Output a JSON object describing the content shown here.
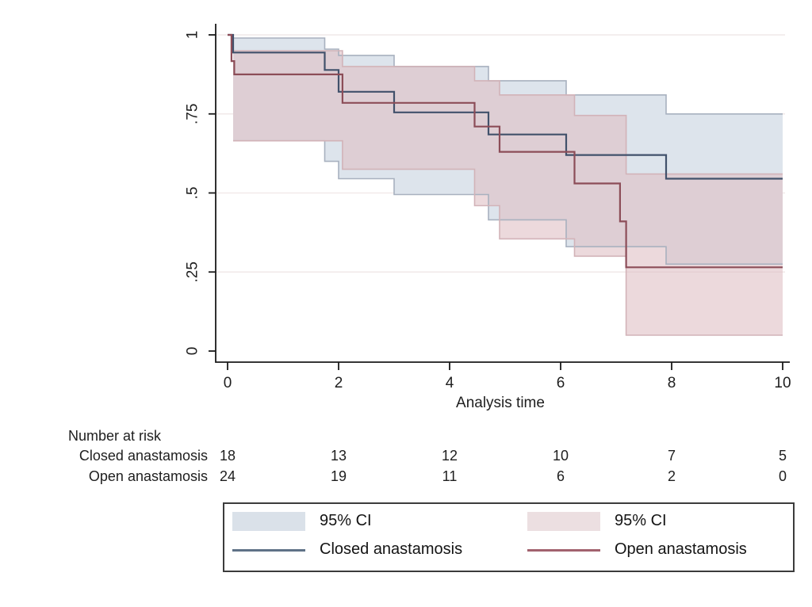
{
  "chart_data": {
    "type": "line",
    "subtype": "kaplan-meier-step-with-ci-bands",
    "title": "",
    "xlabel": "Analysis time",
    "ylabel": "",
    "xlim": [
      0,
      10
    ],
    "ylim": [
      0,
      1
    ],
    "grid": "horizontal",
    "xticks": [
      {
        "t": 0,
        "label": "0"
      },
      {
        "t": 2,
        "label": "2"
      },
      {
        "t": 4,
        "label": "4"
      },
      {
        "t": 6,
        "label": "6"
      },
      {
        "t": 8,
        "label": "8"
      },
      {
        "t": 10,
        "label": "10"
      }
    ],
    "yticks": [
      {
        "v": 0,
        "label": "0"
      },
      {
        "v": 0.25,
        "label": ".25"
      },
      {
        "v": 0.5,
        "label": ".5"
      },
      {
        "v": 0.75,
        "label": ".75"
      },
      {
        "v": 1,
        "label": "1"
      }
    ],
    "series": [
      {
        "name": "Closed anastamosis",
        "color": "#41516b",
        "steps": [
          [
            0,
            1
          ],
          [
            0.1,
            0.944
          ],
          [
            1.75,
            0.889
          ],
          [
            2.0,
            0.82
          ],
          [
            3.0,
            0.755
          ],
          [
            4.7,
            0.685
          ],
          [
            6.1,
            0.62
          ],
          [
            7.9,
            0.545
          ],
          [
            10,
            0.545
          ]
        ]
      },
      {
        "name": "Open anastamosis",
        "color": "#8c4d58",
        "steps": [
          [
            0,
            1
          ],
          [
            0.07,
            0.917
          ],
          [
            0.12,
            0.875
          ],
          [
            2.07,
            0.785
          ],
          [
            4.45,
            0.71
          ],
          [
            4.9,
            0.63
          ],
          [
            6.25,
            0.53
          ],
          [
            7.07,
            0.41
          ],
          [
            7.18,
            0.265
          ],
          [
            10,
            0.265
          ]
        ]
      }
    ],
    "bands": [
      {
        "name": "95% CI (Closed anastamosis)",
        "fill": "#dde4ec",
        "edge": "#a8b1bf",
        "upper": [
          [
            0.1,
            0.99
          ],
          [
            1.75,
            0.955
          ],
          [
            2.0,
            0.935
          ],
          [
            3.0,
            0.9
          ],
          [
            4.7,
            0.855
          ],
          [
            6.1,
            0.81
          ],
          [
            7.9,
            0.75
          ],
          [
            10,
            0.75
          ]
        ],
        "lower": [
          [
            0.1,
            0.665
          ],
          [
            1.75,
            0.6
          ],
          [
            2.0,
            0.545
          ],
          [
            3.0,
            0.495
          ],
          [
            4.7,
            0.415
          ],
          [
            6.1,
            0.33
          ],
          [
            7.9,
            0.275
          ],
          [
            10,
            0.275
          ]
        ]
      },
      {
        "name": "95% CI (Open anastamosis)",
        "fill": "rgba(223,191,196,0.60)",
        "edge": "#d2b3b8",
        "upper": [
          [
            0.1,
            0.95
          ],
          [
            2.07,
            0.9
          ],
          [
            4.45,
            0.855
          ],
          [
            4.9,
            0.81
          ],
          [
            6.25,
            0.745
          ],
          [
            7.18,
            0.56
          ],
          [
            10,
            0.56
          ]
        ],
        "lower": [
          [
            0.1,
            0.665
          ],
          [
            2.07,
            0.575
          ],
          [
            4.45,
            0.46
          ],
          [
            4.9,
            0.355
          ],
          [
            6.25,
            0.3
          ],
          [
            7.18,
            0.05
          ],
          [
            10,
            0.05
          ]
        ]
      }
    ],
    "colors": {
      "axis": "#1a1a1a",
      "grid": "#f1e9e9"
    },
    "legend_position": "bottom"
  },
  "risk_table": {
    "title": "Number at risk",
    "times": [
      0,
      2,
      4,
      6,
      8,
      10
    ],
    "rows": [
      {
        "label": "Closed anastamosis",
        "counts": [
          "18",
          "13",
          "12",
          "10",
          "7",
          "5"
        ]
      },
      {
        "label": "Open anastamosis",
        "counts": [
          "24",
          "19",
          "11",
          "6",
          "2",
          "0"
        ]
      }
    ]
  },
  "legend": {
    "items": [
      {
        "type": "band",
        "label": "95% CI",
        "color": "#dae1e9"
      },
      {
        "type": "band",
        "label": "95% CI",
        "color": "#ecdfe1"
      },
      {
        "type": "line",
        "label": "Closed anastamosis",
        "color": "#5f7287"
      },
      {
        "type": "line",
        "label": "Open anastamosis",
        "color": "#a2626e"
      }
    ]
  }
}
